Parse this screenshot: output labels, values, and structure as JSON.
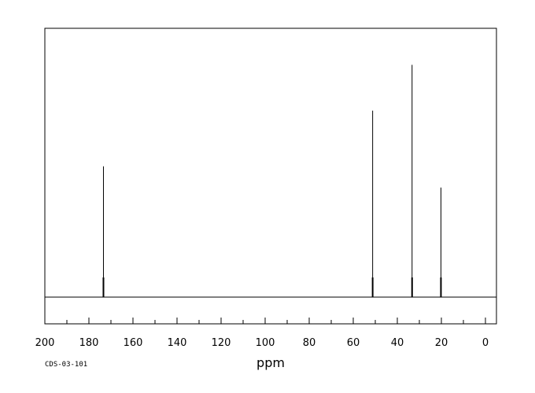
{
  "chart_data": {
    "type": "line",
    "title": "",
    "xlabel": "ppm",
    "ylabel": "",
    "xlim": [
      200,
      -5
    ],
    "ylim": [
      0,
      100
    ],
    "x_reversed": true,
    "grid": false,
    "baseline": 0,
    "major_ticks": [
      200,
      180,
      160,
      140,
      120,
      100,
      80,
      60,
      40,
      20,
      0
    ],
    "tick_labels": [
      "200",
      "180",
      "160",
      "140",
      "120",
      100,
      "80",
      "60",
      "40",
      "20",
      "0"
    ],
    "minor_tick_step": 10,
    "peaks": [
      {
        "x": 173.4,
        "y": 53.5
      },
      {
        "x": 51.2,
        "y": 76.3
      },
      {
        "x": 33.3,
        "y": 95.0
      },
      {
        "x": 20.2,
        "y": 44.8
      }
    ],
    "spectrum_id": "CDS-03-101"
  }
}
